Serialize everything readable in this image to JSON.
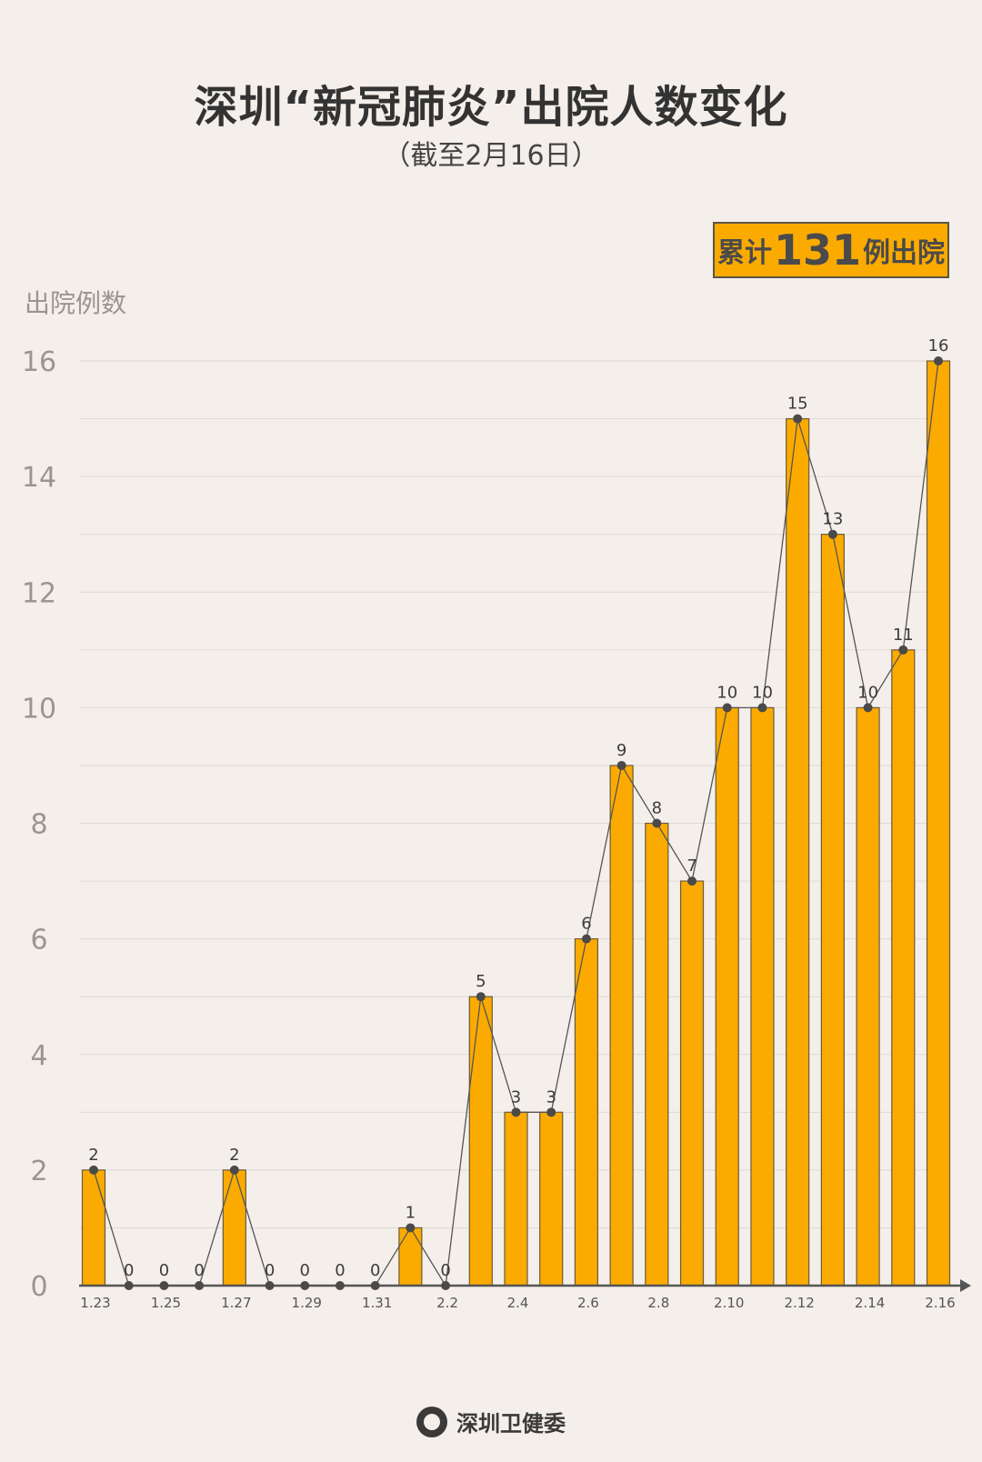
{
  "header": {
    "title": "深圳“新冠肺炎”出院人数变化",
    "subtitle": "（截至2月16日）"
  },
  "badge": {
    "prefix": "累计",
    "number": "131",
    "suffix": "例出院"
  },
  "footer": {
    "logo_icon": "shenzhen-health-commission-logo",
    "org": "深圳卫健委"
  },
  "colors": {
    "background": "#f4efeb",
    "bar": "#fbab00",
    "bar_border": "#6b5a3a",
    "line": "#555555"
  },
  "chart_data": {
    "type": "bar",
    "overlay": "line",
    "ylabel": "出院例数",
    "ylim": [
      0,
      16
    ],
    "yticks": [
      0,
      2,
      4,
      6,
      8,
      10,
      12,
      14,
      16
    ],
    "grid": true,
    "categories": [
      "1.23",
      "1.24",
      "1.25",
      "1.26",
      "1.27",
      "1.28",
      "1.29",
      "1.30",
      "1.31",
      "2.1",
      "2.2",
      "2.3",
      "2.4",
      "2.5",
      "2.6",
      "2.7",
      "2.8",
      "2.9",
      "2.10",
      "2.11",
      "2.12",
      "2.13",
      "2.14",
      "2.15",
      "2.16"
    ],
    "tick_labels": [
      "1.23",
      "1.25",
      "1.27",
      "1.29",
      "1.31",
      "2.2",
      "2.4",
      "2.6",
      "2.8",
      "2.10",
      "2.12",
      "2.14",
      "2.16"
    ],
    "values": [
      2,
      0,
      0,
      0,
      2,
      0,
      0,
      0,
      0,
      1,
      0,
      5,
      3,
      3,
      6,
      9,
      8,
      7,
      10,
      10,
      15,
      13,
      10,
      11,
      16
    ]
  }
}
